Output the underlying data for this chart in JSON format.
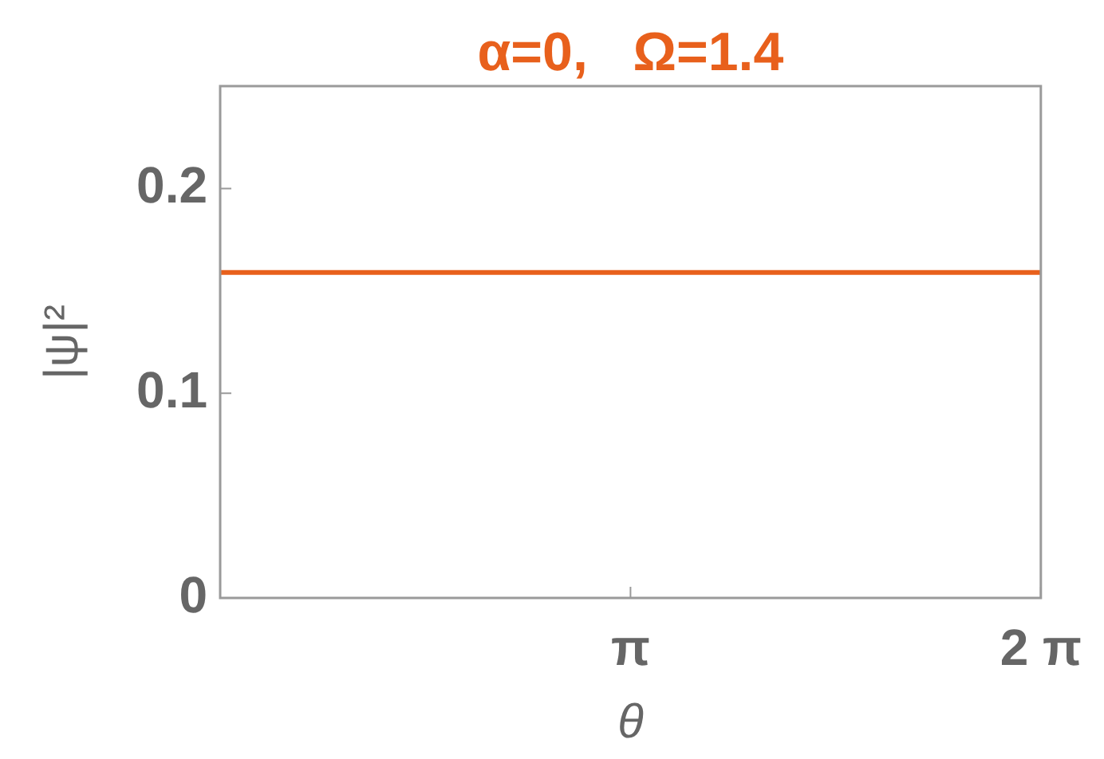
{
  "chart_data": {
    "type": "line",
    "title": "α=0,   Ω=1.4",
    "xlabel": "θ",
    "ylabel": "|ψ|²",
    "x": [
      0,
      6.2832
    ],
    "series": [
      {
        "color": "#e8601c",
        "values": [
          0.159,
          0.159
        ]
      }
    ],
    "xlim": [
      0,
      6.2832
    ],
    "xticks": [
      {
        "value": 3.1416,
        "label": "π"
      },
      {
        "value": 6.2832,
        "label": "2 π"
      }
    ],
    "ylim": [
      0,
      0.25
    ],
    "yticks": [
      0,
      0.1,
      0.2
    ]
  }
}
